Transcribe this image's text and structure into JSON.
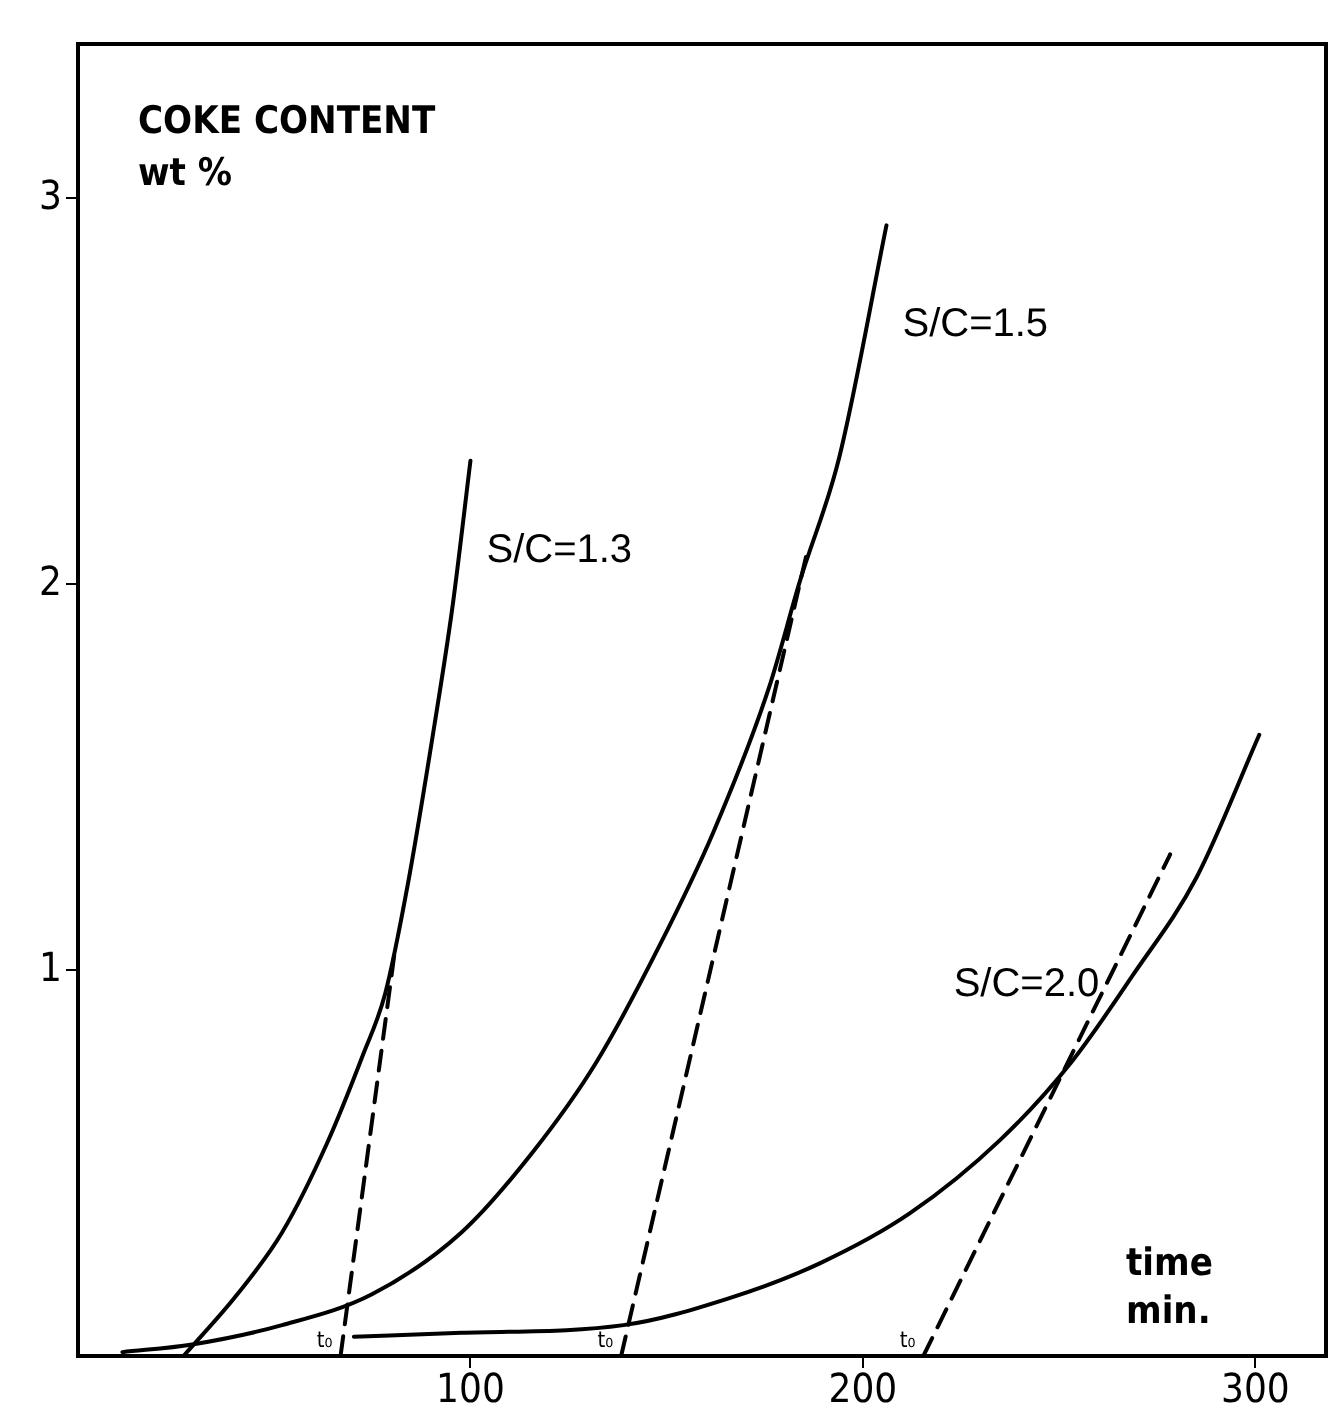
{
  "chart_data": {
    "type": "line",
    "xlabel": "time\nmin.",
    "ylabel": "COKE CONTENT\nwt %",
    "xlim": [
      0,
      318
    ],
    "ylim": [
      0,
      3.4
    ],
    "xticks": [
      100,
      200,
      300
    ],
    "yticks": [
      1,
      2,
      3
    ],
    "grid": false,
    "legend": false,
    "marker": "none",
    "series": [
      {
        "name": "S/C=1.3",
        "color": "#000000",
        "line_style": "solid",
        "x": [
          26.9,
          40.6,
          52,
          63.4,
          72.6,
          78.3,
          84,
          90.9,
          95.4,
          100
        ],
        "values": [
          0,
          0.16,
          0.32,
          0.55,
          0.78,
          0.94,
          1.22,
          1.64,
          1.94,
          2.32
        ]
      },
      {
        "name": "S/C=1.5",
        "color": "#000000",
        "line_style": "solid",
        "x": [
          11.3,
          29.1,
          52,
          74.9,
          97.7,
          116,
          132,
          148,
          162,
          176,
          184,
          194,
          206
        ],
        "values": [
          0.01,
          0.03,
          0.08,
          0.16,
          0.32,
          0.53,
          0.76,
          1.06,
          1.36,
          1.73,
          2.01,
          2.33,
          2.93
        ]
      },
      {
        "name": "S/C=2.0",
        "color": "#000000",
        "line_style": "solid",
        "x": [
          70.3,
          97.7,
          139,
          166,
          189,
          212,
          235,
          253,
          269,
          285,
          301
        ],
        "values": [
          0.05,
          0.06,
          0.08,
          0.15,
          0.24,
          0.37,
          0.56,
          0.76,
          0.99,
          1.24,
          1.61
        ]
      },
      {
        "color": "#000000",
        "line_style": "dashed",
        "x": [
          66.9,
          80.6
        ],
        "values": [
          0,
          1.04
        ]
      },
      {
        "color": "#000000",
        "line_style": "dashed",
        "x": [
          138.4,
          185.7
        ],
        "values": [
          0,
          2.08
        ]
      },
      {
        "color": "#000000",
        "line_style": "dashed",
        "x": [
          215.4,
          278.3
        ],
        "values": [
          0,
          1.3
        ]
      }
    ],
    "annotations": [
      {
        "text": "t₀",
        "x": 66.9,
        "y": 0
      },
      {
        "text": "t₀",
        "x": 138.4,
        "y": 0
      },
      {
        "text": "t₀",
        "x": 215.4,
        "y": 0
      }
    ]
  }
}
